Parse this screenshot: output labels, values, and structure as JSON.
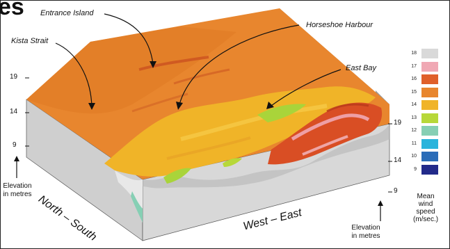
{
  "title_fragment": "es",
  "place_labels": {
    "entrance_island": "Entrance Island",
    "kista_strait": "Kista Strait",
    "horseshoe_harbour": "Horseshoe Harbour",
    "east_bay": "East Bay"
  },
  "axes": {
    "north_south": "North – South",
    "west_east": "West – East",
    "left_ticks": [
      "19",
      "14",
      "9"
    ],
    "right_ticks": [
      "19",
      "14",
      "9"
    ],
    "elevation_label_lines": [
      "Elevation",
      "in metres"
    ]
  },
  "legend": {
    "title_lines": [
      "Mean",
      "wind",
      "speed",
      "(m/sec.)"
    ],
    "items": [
      {
        "value": "18",
        "color": "#d9d9d9"
      },
      {
        "value": "17",
        "color": "#f0a8b4"
      },
      {
        "value": "16",
        "color": "#e0602a"
      },
      {
        "value": "15",
        "color": "#e8862e"
      },
      {
        "value": "14",
        "color": "#f0b428"
      },
      {
        "value": "13",
        "color": "#b7d839"
      },
      {
        "value": "12",
        "color": "#86cfb4"
      },
      {
        "value": "11",
        "color": "#2ab4dc"
      },
      {
        "value": "10",
        "color": "#2a6cb8"
      },
      {
        "value": "9",
        "color": "#222a8a"
      }
    ]
  }
}
